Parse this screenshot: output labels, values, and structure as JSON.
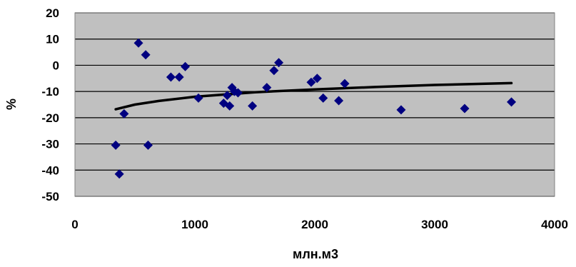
{
  "chart_data": {
    "type": "scatter",
    "title": "",
    "xlabel": "млн.м3",
    "ylabel": "%",
    "xlim": [
      0,
      4000
    ],
    "ylim": [
      -50,
      20
    ],
    "x_ticks": [
      "0",
      "1000",
      "2000",
      "3000",
      "4000"
    ],
    "y_ticks": [
      "20",
      "10",
      "0",
      "-10",
      "-20",
      "-30",
      "-40",
      "-50"
    ],
    "grid": "horizontal",
    "legend": "none",
    "colors": {
      "plot_bg": "#c0c0c0",
      "marker": "#000080",
      "trend": "#000000",
      "grid": "#000000"
    },
    "points": [
      {
        "x": 340,
        "y": -30.5
      },
      {
        "x": 370,
        "y": -41.5
      },
      {
        "x": 410,
        "y": -18.5
      },
      {
        "x": 530,
        "y": 8.5
      },
      {
        "x": 590,
        "y": 4.0
      },
      {
        "x": 610,
        "y": -30.5
      },
      {
        "x": 800,
        "y": -4.5
      },
      {
        "x": 870,
        "y": -4.5
      },
      {
        "x": 920,
        "y": -0.5
      },
      {
        "x": 1030,
        "y": -12.5
      },
      {
        "x": 1240,
        "y": -14.5
      },
      {
        "x": 1270,
        "y": -11.5
      },
      {
        "x": 1290,
        "y": -15.5
      },
      {
        "x": 1310,
        "y": -8.5
      },
      {
        "x": 1330,
        "y": -10.0
      },
      {
        "x": 1360,
        "y": -10.5
      },
      {
        "x": 1480,
        "y": -15.5
      },
      {
        "x": 1600,
        "y": -8.5
      },
      {
        "x": 1660,
        "y": -2.0
      },
      {
        "x": 1700,
        "y": 1.0
      },
      {
        "x": 1970,
        "y": -6.5
      },
      {
        "x": 2020,
        "y": -5.0
      },
      {
        "x": 2070,
        "y": -12.5
      },
      {
        "x": 2200,
        "y": -13.5
      },
      {
        "x": 2250,
        "y": -7.0
      },
      {
        "x": 2720,
        "y": -17.0
      },
      {
        "x": 3250,
        "y": -16.5
      },
      {
        "x": 3640,
        "y": -14.0
      }
    ],
    "trendline": {
      "type": "logarithmic",
      "x": [
        340,
        500,
        700,
        1000,
        1500,
        2000,
        2500,
        3000,
        3640
      ],
      "y": [
        -16.8,
        -15.0,
        -13.6,
        -12.0,
        -10.3,
        -9.2,
        -8.3,
        -7.5,
        -6.8
      ]
    }
  }
}
